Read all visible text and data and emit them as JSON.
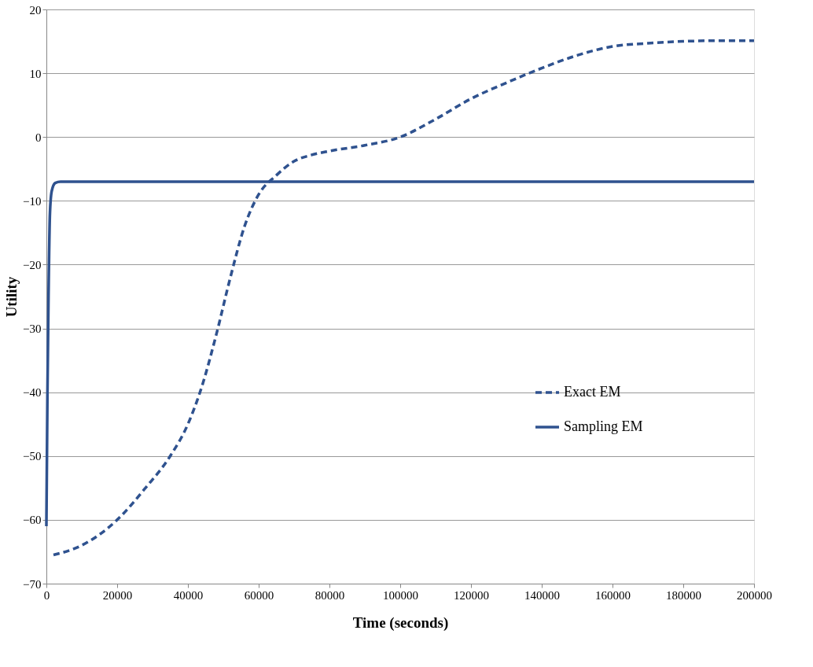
{
  "chart_data": {
    "type": "line",
    "xlabel": "Time (seconds)",
    "ylabel": "Utility",
    "xlim": [
      0,
      200000
    ],
    "xticks": [
      0,
      20000,
      40000,
      60000,
      80000,
      100000,
      120000,
      140000,
      160000,
      180000,
      200000
    ],
    "ylim": [
      -70,
      20
    ],
    "yticks": [
      -70,
      -60,
      -50,
      -40,
      -30,
      -20,
      -10,
      0,
      10,
      20
    ],
    "grid": "y",
    "legend": "right",
    "marker": "none",
    "series": [
      {
        "name": "Exact EM",
        "color": "#2f528f",
        "line_style": "dashed",
        "x": [
          2000,
          10000,
          20000,
          28000,
          35000,
          40000,
          44000,
          48000,
          52000,
          56000,
          60000,
          65000,
          70000,
          75000,
          80000,
          90000,
          100000,
          110000,
          120000,
          130000,
          140000,
          150000,
          160000,
          170000,
          180000,
          190000,
          200000
        ],
        "values": [
          -65.5,
          -64,
          -60,
          -55,
          -50,
          -45,
          -39,
          -31,
          -22,
          -14,
          -9,
          -6,
          -3.8,
          -2.8,
          -2.2,
          -1.3,
          0,
          2.8,
          6,
          8.5,
          10.8,
          12.8,
          14.2,
          14.7,
          15,
          15.1,
          15.1
        ]
      },
      {
        "name": "Sampling EM",
        "color": "#2f528f",
        "line_style": "solid",
        "x": [
          0,
          300,
          600,
          1000,
          1500,
          2500,
          4000,
          200000
        ],
        "values": [
          -61,
          -40,
          -25,
          -12,
          -8.5,
          -7.2,
          -7,
          -7
        ]
      }
    ]
  }
}
